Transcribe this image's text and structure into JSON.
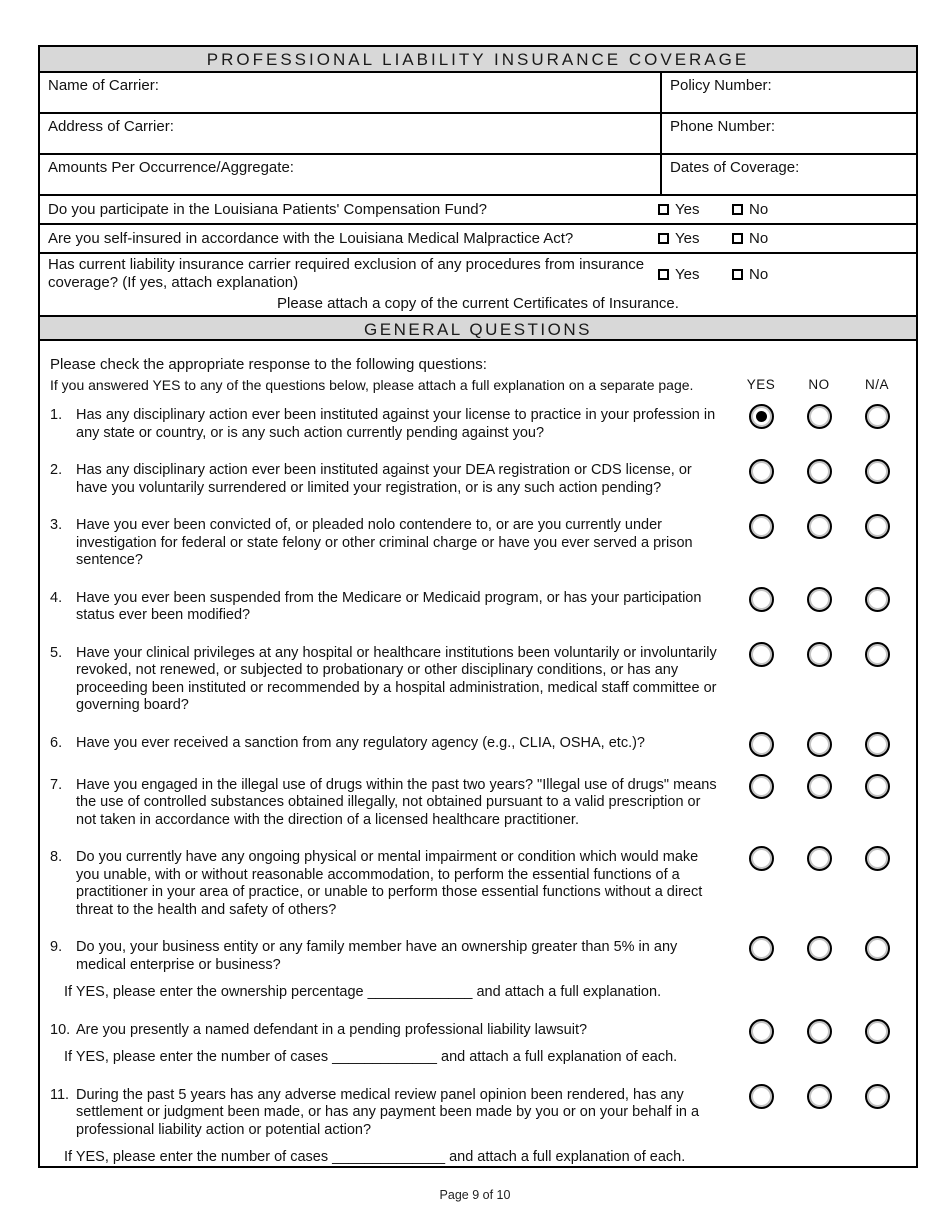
{
  "insurance": {
    "title": "PROFESSIONAL LIABILITY INSURANCE COVERAGE",
    "rows": [
      {
        "left": "Name of Carrier:",
        "right": "Policy Number:"
      },
      {
        "left": "Address of Carrier:",
        "right": "Phone Number:"
      },
      {
        "left": "Amounts Per Occurrence/Aggregate:",
        "right": "Dates of Coverage:"
      }
    ],
    "yesno": [
      {
        "text": "Do you participate in the Louisiana Patients' Compensation Fund?"
      },
      {
        "text": "Are you self-insured in accordance with the Louisiana Medical Malpractice Act?"
      },
      {
        "text": "Has current liability insurance carrier required exclusion of any procedures from insurance coverage? (If yes, attach explanation)"
      }
    ],
    "yes_label": "Yes",
    "no_label": "No",
    "note": "Please attach a copy of the current Certificates of Insurance."
  },
  "general": {
    "title": "GENERAL QUESTIONS",
    "intro_line1": "Please check the appropriate response to the following questions:",
    "intro_line2": "If you answered YES to any of the questions below, please attach a full explanation on a separate page.",
    "col_headers": [
      "YES",
      "NO",
      "N/A"
    ],
    "questions": [
      {
        "num": "1.",
        "text": "Has any disciplinary action ever been instituted against your license to practice in your profession in any state or country, or is any such action currently pending against you?",
        "selected": "YES"
      },
      {
        "num": "2.",
        "text": "Has any disciplinary action ever been instituted against your DEA registration or CDS license, or have you voluntarily surrendered or limited your registration, or is any such action pending?",
        "selected": null
      },
      {
        "num": "3.",
        "text": "Have you ever been convicted of, or pleaded nolo contendere to, or are you currently under investigation for federal or state felony or other criminal charge or have you ever served a prison sentence?",
        "selected": null
      },
      {
        "num": "4.",
        "text": "Have you ever been suspended from the Medicare or Medicaid program, or has your participation status ever been modified?",
        "selected": null
      },
      {
        "num": "5.",
        "text": "Have your clinical privileges at any hospital or healthcare institutions been voluntarily or involuntarily revoked, not renewed, or subjected to probationary or other disciplinary conditions, or has any proceeding been instituted or recommended by a hospital administration, medical staff committee or governing board?",
        "selected": null
      },
      {
        "num": "6.",
        "text": "Have you ever received a sanction from any regulatory agency (e.g., CLIA, OSHA, etc.)?",
        "selected": null
      },
      {
        "num": "7.",
        "text": "Have you engaged in the illegal use of drugs within the past two years?  \"Illegal use of drugs\" means the use of controlled substances obtained illegally, not obtained pursuant to a valid prescription or not taken in accordance with the direction of a licensed healthcare practitioner.",
        "selected": null
      },
      {
        "num": "8.",
        "text": "Do you currently have any ongoing physical or mental impairment or condition which would make you unable, with or without reasonable accommodation, to perform the essential functions of a practitioner in your area of practice, or unable to perform those essential functions without a direct threat to the health and safety of others?",
        "selected": null
      },
      {
        "num": "9.",
        "text": "Do you, your business entity or any family member have an ownership greater than 5% in any medical enterprise or business?",
        "followup": "If YES, please enter the ownership percentage _____________ and attach a full explanation.",
        "selected": null
      },
      {
        "num": "10.",
        "text": "Are you presently a named defendant in a pending professional liability lawsuit?",
        "followup": "If YES, please enter the number of cases _____________ and attach a full explanation of each.",
        "selected": null
      },
      {
        "num": "11.",
        "text": "During the past 5 years has any adverse medical review panel opinion been rendered, has any settlement or judgment been made, or has any payment been made by you or on your behalf in a professional liability action or potential action?",
        "followup": "If YES, please enter the number of cases ______________ and attach a full explanation of each.",
        "selected": null
      }
    ]
  },
  "footer": {
    "page_label": "Page 9 of 10"
  }
}
